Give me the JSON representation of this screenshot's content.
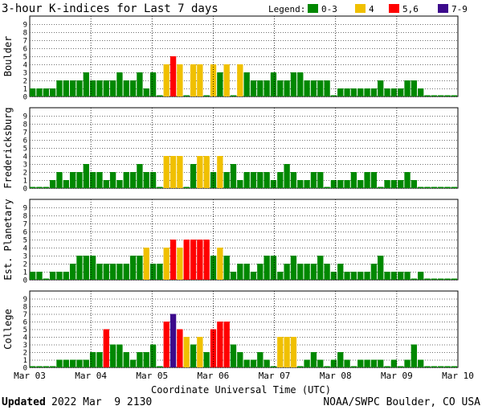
{
  "header": {
    "title": "3-hour K-indices for Last 7 days",
    "legend_label": "Legend:"
  },
  "legend": [
    {
      "label": "0-3",
      "color": "#008800"
    },
    {
      "label": "4",
      "color": "#f0c000"
    },
    {
      "label": "5,6",
      "color": "#ff0000"
    },
    {
      "label": "7-9",
      "color": "#3c0a8c"
    }
  ],
  "footer": {
    "updated_label": "Updated",
    "updated_value": "2022 Mar  9 2130",
    "source": "NOAA/SWPC Boulder, CO USA"
  },
  "chart_data": {
    "type": "bar",
    "xlabel": "Coordinate Universal Time (UTC)",
    "x_ticks": [
      "Mar 03",
      "Mar 04",
      "Mar 05",
      "Mar 06",
      "Mar 07",
      "Mar 08",
      "Mar 09",
      "Mar 10"
    ],
    "ylim": [
      0,
      9
    ],
    "y_ticks": [
      0,
      1,
      2,
      3,
      4,
      5,
      6,
      7,
      8,
      9
    ],
    "bins_per_day": 8,
    "panels": [
      {
        "name": "Boulder",
        "values": [
          1,
          1,
          1,
          1,
          2,
          2,
          2,
          2,
          3,
          2,
          2,
          2,
          2,
          3,
          2,
          2,
          3,
          1,
          3,
          0,
          4,
          5,
          4,
          0,
          4,
          4,
          0,
          4,
          3,
          4,
          0,
          4,
          3,
          2,
          2,
          2,
          3,
          2,
          2,
          3,
          3,
          2,
          2,
          2,
          2,
          0,
          1,
          1,
          1,
          1,
          1,
          1,
          2,
          1,
          1,
          1,
          2,
          2,
          1,
          0,
          0,
          0,
          0,
          0
        ]
      },
      {
        "name": "Fredericksburg",
        "values": [
          0,
          0,
          0,
          1,
          2,
          1,
          2,
          2,
          3,
          2,
          2,
          1,
          2,
          1,
          2,
          2,
          3,
          2,
          2,
          0,
          4,
          4,
          4,
          0,
          3,
          4,
          4,
          2,
          4,
          2,
          3,
          1,
          2,
          2,
          2,
          2,
          1,
          2,
          3,
          2,
          1,
          1,
          2,
          2,
          0,
          1,
          1,
          1,
          2,
          1,
          2,
          2,
          0,
          1,
          1,
          1,
          2,
          1,
          0,
          0,
          0,
          0,
          0,
          0
        ]
      },
      {
        "name": "Est. Planetary",
        "values": [
          1,
          1,
          0,
          1,
          1,
          1,
          2,
          3,
          3,
          3,
          2,
          2,
          2,
          2,
          2,
          3,
          3,
          4,
          2,
          2,
          4,
          5,
          4,
          5,
          5,
          5,
          5,
          3,
          4,
          3,
          1,
          2,
          2,
          1,
          2,
          3,
          3,
          1,
          2,
          3,
          2,
          2,
          2,
          3,
          2,
          1,
          2,
          1,
          1,
          1,
          1,
          2,
          3,
          1,
          1,
          1,
          1,
          0,
          1,
          0,
          0,
          0,
          0,
          0
        ]
      },
      {
        "name": "College",
        "values": [
          0,
          0,
          0,
          0,
          1,
          1,
          1,
          1,
          1,
          2,
          2,
          5,
          3,
          3,
          2,
          1,
          2,
          2,
          3,
          0,
          6,
          7,
          5,
          4,
          3,
          4,
          2,
          5,
          6,
          6,
          3,
          2,
          1,
          1,
          2,
          1,
          0,
          4,
          4,
          4,
          0,
          1,
          2,
          1,
          0,
          1,
          2,
          1,
          0,
          1,
          1,
          1,
          1,
          0,
          1,
          0,
          1,
          3,
          1,
          0,
          0,
          0,
          0,
          0
        ]
      }
    ]
  }
}
